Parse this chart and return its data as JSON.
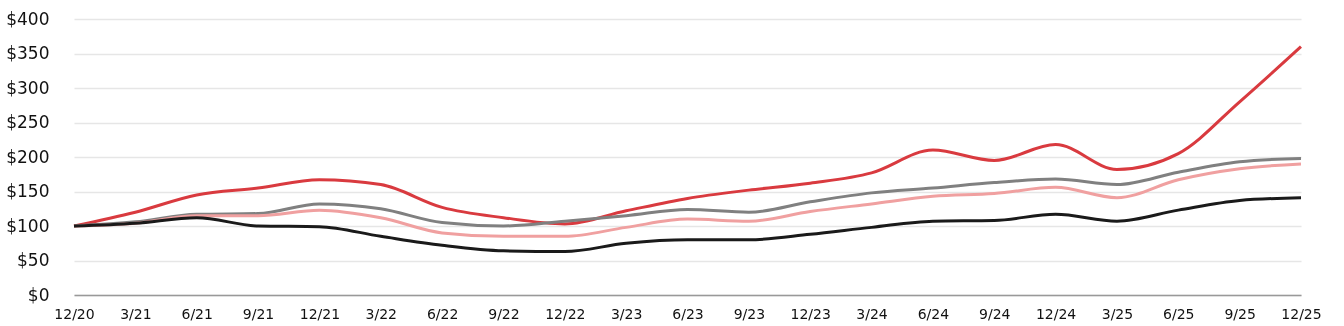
{
  "chart_data": {
    "type": "line",
    "categories": [
      "12/20",
      "3/21",
      "6/21",
      "9/21",
      "12/21",
      "3/22",
      "6/22",
      "9/22",
      "12/22",
      "3/23",
      "6/23",
      "9/23",
      "12/23",
      "3/24",
      "6/24",
      "9/24",
      "12/24",
      "3/25",
      "6/25",
      "9/25",
      "12/25"
    ],
    "series": [
      {
        "color": "#d93a3f",
        "values": [
          100,
          120,
          145,
          155,
          167,
          160,
          127,
          112,
          103,
          122,
          140,
          152,
          162,
          177,
          210,
          195,
          218,
          182,
          205,
          280,
          360
        ]
      },
      {
        "color": "#808080",
        "values": [
          100,
          106,
          117,
          118,
          132,
          125,
          105,
          100,
          107,
          115,
          124,
          120,
          135,
          148,
          155,
          163,
          168,
          160,
          178,
          193,
          198
        ]
      },
      {
        "color": "#f0a0a0",
        "values": [
          100,
          104,
          115,
          115,
          123,
          112,
          90,
          85,
          85,
          98,
          110,
          107,
          121,
          132,
          143,
          147,
          156,
          141,
          167,
          183,
          190
        ]
      },
      {
        "color": "#1a1a1a",
        "values": [
          100,
          104,
          112,
          100,
          99,
          85,
          72,
          64,
          63,
          75,
          80,
          80,
          88,
          98,
          107,
          108,
          117,
          107,
          123,
          137,
          141
        ]
      }
    ],
    "ylim": [
      0,
      400
    ],
    "yticks": [
      {
        "value": 0,
        "label": "$0"
      },
      {
        "value": 50,
        "label": "$50"
      },
      {
        "value": 100,
        "label": "$100"
      },
      {
        "value": 150,
        "label": "$150"
      },
      {
        "value": 200,
        "label": "$200"
      },
      {
        "value": 250,
        "label": "$250"
      },
      {
        "value": 300,
        "label": "$300"
      },
      {
        "value": 350,
        "label": "$350"
      },
      {
        "value": 400,
        "label": "$400"
      }
    ],
    "grid": "y",
    "legend": false,
    "marker": "none",
    "line_style": "solid"
  }
}
